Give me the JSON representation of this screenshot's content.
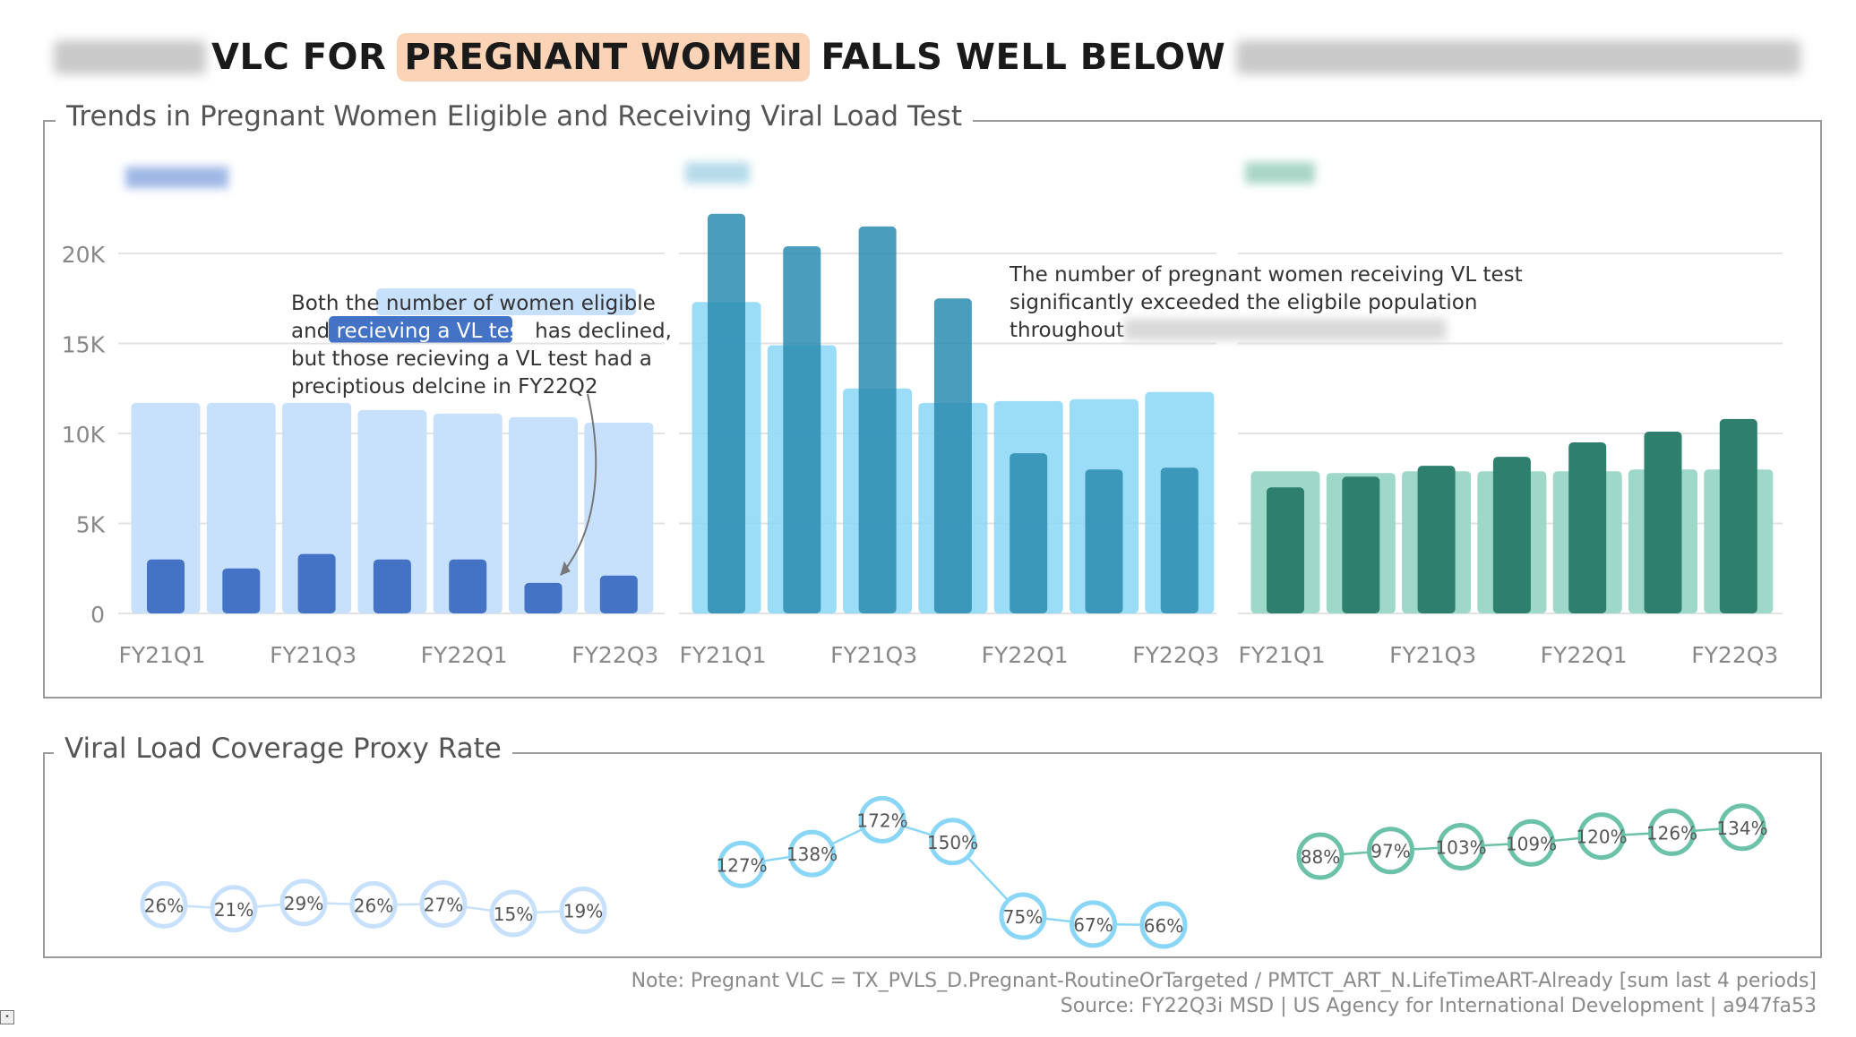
{
  "title": {
    "highlight": "PREGNANT WOMEN",
    "before": "VLC FOR",
    "after": "FALLS WELL BELOW",
    "highlight_color": "#fbd3b7"
  },
  "panels": {
    "top_title": "Trends in Pregnant Women Eligible and Receiving Viral Load Test",
    "bottom_title": "Viral Load Coverage Proxy Rate"
  },
  "annotations": {
    "left": {
      "lines": [
        [
          "Both the ",
          "number of women eligible",
          ""
        ],
        [
          "and ",
          "recieving a VL test",
          " has declined,"
        ],
        [
          "but those recieving a VL test had a",
          "",
          ""
        ],
        [
          "preciptious delcine in FY22Q2",
          "",
          ""
        ]
      ]
    },
    "middle": {
      "lines": [
        "The number of pregnant women receiving VL test",
        "significantly exceeded the eligbile population",
        "throughout"
      ]
    }
  },
  "chart_data": [
    {
      "type": "bar",
      "title": "",
      "categories": [
        "FY21Q1",
        "FY21Q2",
        "FY21Q3",
        "FY21Q4",
        "FY22Q1",
        "FY22Q2",
        "FY22Q3"
      ],
      "tick_labels": [
        "FY21Q1",
        "FY21Q3",
        "FY22Q1",
        "FY22Q3"
      ],
      "ylim": [
        0,
        22000
      ],
      "yticks": [
        {
          "value": 0,
          "label": "0"
        },
        {
          "value": 5000,
          "label": "5K"
        },
        {
          "value": 10000,
          "label": "10K"
        },
        {
          "value": 15000,
          "label": "15K"
        },
        {
          "value": 20000,
          "label": "20K"
        }
      ],
      "grid": true,
      "series": [
        {
          "values": [
            11700,
            11700,
            11700,
            11300,
            11100,
            10900,
            10600
          ],
          "color": "#c7e0fb"
        },
        {
          "values": [
            3000,
            2500,
            3300,
            3000,
            3000,
            1700,
            2100
          ],
          "color": "#4472c4"
        }
      ]
    },
    {
      "type": "bar",
      "title": "",
      "categories": [
        "FY21Q1",
        "FY21Q2",
        "FY21Q3",
        "FY21Q4",
        "FY22Q1",
        "FY22Q2",
        "FY22Q3"
      ],
      "tick_labels": [
        "FY21Q1",
        "FY21Q3",
        "FY22Q1",
        "FY22Q3"
      ],
      "ylim": [
        0,
        22000
      ],
      "series": [
        {
          "values": [
            17300,
            14900,
            12500,
            11700,
            11800,
            11900,
            12300
          ],
          "color": "#8ad6f6"
        },
        {
          "values": [
            22200,
            20400,
            21500,
            17500,
            8900,
            8000,
            8100
          ],
          "color": "#2a8cb0"
        }
      ]
    },
    {
      "type": "bar",
      "title": "",
      "categories": [
        "FY21Q1",
        "FY21Q2",
        "FY21Q3",
        "FY21Q4",
        "FY22Q1",
        "FY22Q2",
        "FY22Q3"
      ],
      "tick_labels": [
        "FY21Q1",
        "FY21Q3",
        "FY22Q1",
        "FY22Q3"
      ],
      "ylim": [
        0,
        22000
      ],
      "series": [
        {
          "values": [
            7900,
            7800,
            7900,
            7900,
            7900,
            8000,
            8000
          ],
          "color": "#9ed8c8"
        },
        {
          "values": [
            7000,
            7600,
            8200,
            8700,
            9500,
            10100,
            10800
          ],
          "color": "#2f7f6f"
        }
      ]
    },
    {
      "type": "line",
      "title": "",
      "x": [
        "FY21Q1",
        "FY21Q2",
        "FY21Q3",
        "FY21Q4",
        "FY22Q1",
        "FY22Q2",
        "FY22Q3"
      ],
      "series": [
        {
          "values": [
            26,
            21,
            29,
            26,
            27,
            15,
            19
          ],
          "labels": [
            "26%",
            "21%",
            "29%",
            "26%",
            "27%",
            "15%",
            "19%"
          ],
          "color": "#c7e0fb"
        },
        {
          "values": [
            127,
            138,
            172,
            150,
            75,
            67,
            66
          ],
          "labels": [
            "127%",
            "138%",
            "172%",
            "150%",
            "75%",
            "67%",
            "66%"
          ],
          "color": "#8ad6f6"
        },
        {
          "values": [
            88,
            97,
            103,
            109,
            120,
            126,
            134
          ],
          "labels": [
            "88%",
            "97%",
            "103%",
            "109%",
            "120%",
            "126%",
            "134%"
          ],
          "color": "#6cc2a8"
        }
      ]
    }
  ],
  "footer": {
    "note": "Note: Pregnant VLC = TX_PVLS_D.Pregnant-RoutineOrTargeted / PMTCT_ART_N.LifeTimeART-Already [sum last 4 periods]",
    "source": "Source: FY22Q3i MSD | US Agency for International Development | a947fa53"
  }
}
